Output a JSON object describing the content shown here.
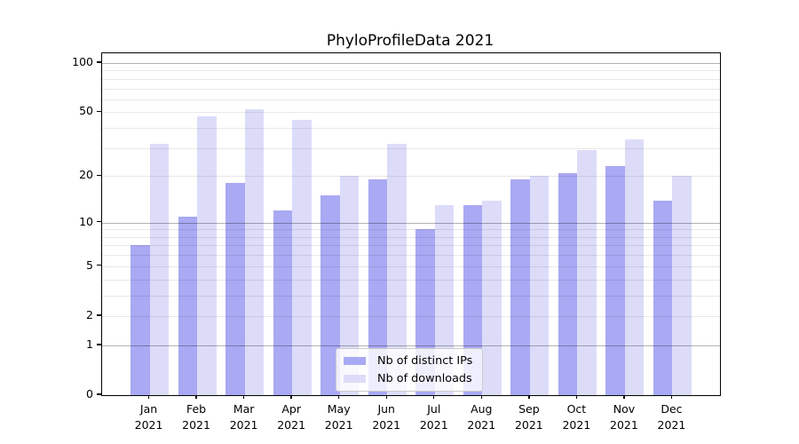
{
  "chart_data": {
    "type": "bar",
    "title": "PhyloProfileData 2021",
    "categories": [
      "Jan",
      "Feb",
      "Mar",
      "Apr",
      "May",
      "Jun",
      "Jul",
      "Aug",
      "Sep",
      "Oct",
      "Nov",
      "Dec"
    ],
    "year": "2021",
    "series": [
      {
        "name": "Nb of distinct IPs",
        "color": "#a9a9f4",
        "values": [
          7,
          11,
          18,
          12,
          15,
          19,
          9,
          13,
          19,
          21,
          23,
          14
        ]
      },
      {
        "name": "Nb of downloads",
        "color": "#dcdcf9",
        "values": [
          32,
          47,
          52,
          45,
          20,
          32,
          13,
          14,
          20,
          29,
          34,
          20
        ]
      }
    ],
    "y_axis": {
      "scale": "log1p",
      "tick_labels": [
        100,
        50,
        20,
        10,
        5,
        2,
        1,
        0
      ],
      "major_gridlines": [
        1,
        10,
        100
      ],
      "minor_gridlines": [
        2,
        3,
        4,
        5,
        6,
        7,
        8,
        9,
        20,
        30,
        40,
        50,
        60,
        70,
        80,
        90
      ],
      "ylim": [
        0,
        117
      ]
    },
    "legend": {
      "position": "lower center"
    },
    "colors": {
      "major_grid": "rgba(0,0,0,0.30)",
      "minor_grid": "rgba(0,0,0,0.09)",
      "spine": "#000000",
      "text": "#000000"
    }
  }
}
